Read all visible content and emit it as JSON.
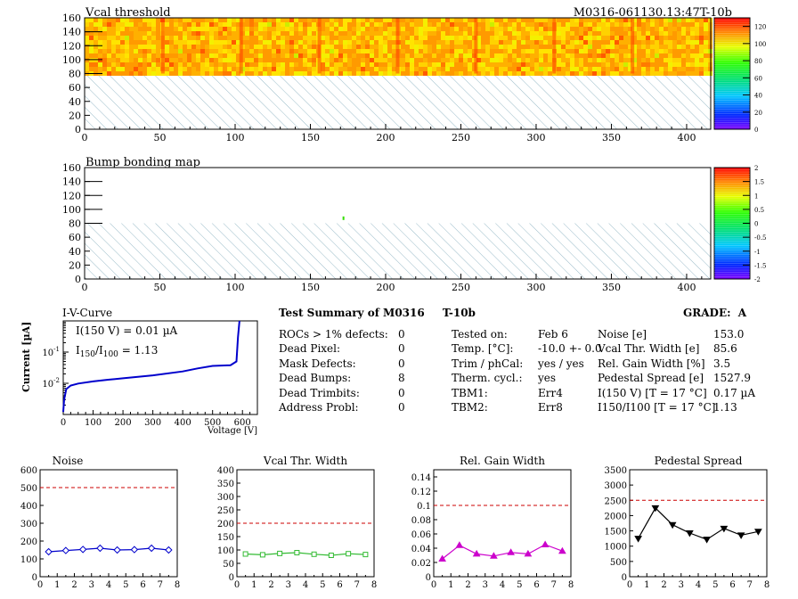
{
  "header": {
    "map1_title": "Vcal threshold",
    "module_id": "M0316-061130.13:47T-10b",
    "map2_title": "Bump bonding map"
  },
  "maps": {
    "x_ticks": [
      "0",
      "50",
      "100",
      "150",
      "200",
      "250",
      "300",
      "350",
      "400"
    ],
    "y_ticks": [
      "0",
      "20",
      "40",
      "60",
      "80",
      "100",
      "120",
      "140",
      "160"
    ],
    "x_range": [
      0,
      416
    ],
    "y_range": [
      0,
      160
    ],
    "vcal_palette_ticks": [
      "0",
      "20",
      "40",
      "60",
      "80",
      "100",
      "120"
    ],
    "bump_palette_ticks": [
      "-2",
      "-1.5",
      "-1",
      "-0.5",
      "0",
      "0.5",
      "1",
      "1.5",
      "2"
    ]
  },
  "iv": {
    "title": "I-V-Curve",
    "ylabel": "Current [µA]",
    "xlabel": "Voltage [V]",
    "x_ticks": [
      "0",
      "100",
      "200",
      "300",
      "400",
      "500",
      "600"
    ],
    "y_ticks_base": [
      "10",
      "10"
    ],
    "y_ticks_exp": [
      "-2",
      "-1"
    ],
    "note1": "I(150 V) = 0.01 µA",
    "note2_a": "I",
    "note2_sub1": "150",
    "note2_b": "/I",
    "note2_sub2": "100",
    "note2_c": " =  1.13"
  },
  "summary": {
    "title": "Test Summary of M0316",
    "title_suffix": "T-10b",
    "grade_label": "GRADE:",
    "grade": "A",
    "defects": [
      {
        "label": "ROCs > 1% defects:",
        "value": "0"
      },
      {
        "label": "Dead Pixel:",
        "value": "0"
      },
      {
        "label": "Mask Defects:",
        "value": "0"
      },
      {
        "label": "Dead Bumps:",
        "value": "8"
      },
      {
        "label": "Dead Trimbits:",
        "value": "0"
      },
      {
        "label": "Address Probl:",
        "value": "0"
      }
    ],
    "conditions": [
      {
        "label": "Tested on:",
        "value": "Feb 6"
      },
      {
        "label": "Temp. [°C]:",
        "value": "-10.0 +- 0.0"
      },
      {
        "label": "Trim / phCal:",
        "value": "yes / yes"
      },
      {
        "label": "Therm. cycl.:",
        "value": "yes"
      },
      {
        "label": "TBM1:",
        "value": "Err4"
      },
      {
        "label": "TBM2:",
        "value": "Err8"
      }
    ],
    "results": [
      {
        "label": "Noise [e]",
        "value": "153.0"
      },
      {
        "label": "Vcal Thr. Width [e]",
        "value": "85.6"
      },
      {
        "label": "Rel. Gain Width [%]",
        "value": "3.5"
      },
      {
        "label": "Pedestal Spread [e]",
        "value": "1527.9"
      },
      {
        "label": "I(150 V) [T = 17 °C]",
        "value": "0.17 µA"
      },
      {
        "label": "I150/I100  [T = 17 °C]",
        "value": "1.13"
      }
    ]
  },
  "chart_data": [
    {
      "type": "heatmap",
      "title": "Vcal threshold",
      "x_range": [
        0,
        416
      ],
      "y_range": [
        0,
        160
      ],
      "filled_y_range": [
        80,
        160
      ],
      "z_range": [
        0,
        130
      ],
      "typical_value": 110
    },
    {
      "type": "heatmap",
      "title": "Bump bonding map",
      "x_range": [
        0,
        416
      ],
      "y_range": [
        0,
        160
      ],
      "filled_y_range": [
        80,
        160
      ],
      "z_range": [
        -2,
        2
      ],
      "points": [
        {
          "x": 172,
          "y": 86,
          "z": 0.5
        }
      ]
    },
    {
      "type": "line",
      "title": "I-V-Curve",
      "xlabel": "Voltage [V]",
      "ylabel": "Current [µA]",
      "xlim": [
        0,
        650
      ],
      "ylim": [
        0.001,
        1
      ],
      "yscale": "log",
      "color": "#0000cc",
      "x": [
        0,
        3,
        10,
        25,
        50,
        100,
        150,
        200,
        300,
        400,
        450,
        500,
        560,
        580,
        585,
        590
      ],
      "y": [
        0.0012,
        0.003,
        0.0065,
        0.0085,
        0.0098,
        0.0115,
        0.013,
        0.0145,
        0.018,
        0.024,
        0.03,
        0.036,
        0.038,
        0.05,
        0.3,
        1.0
      ]
    },
    {
      "type": "line",
      "title": "Noise",
      "xlim": [
        0,
        8
      ],
      "ylim": [
        0,
        600
      ],
      "x_ticks": [
        "0",
        "1",
        "2",
        "3",
        "4",
        "5",
        "6",
        "7",
        "8"
      ],
      "y_ticks": [
        "0",
        "100",
        "200",
        "300",
        "400",
        "500",
        "600"
      ],
      "threshold": 500,
      "color": "#0000cc",
      "marker": "diamond",
      "x": [
        0.5,
        1.5,
        2.5,
        3.5,
        4.5,
        5.5,
        6.5,
        7.5
      ],
      "y": [
        140,
        147,
        153,
        160,
        150,
        152,
        160,
        150
      ]
    },
    {
      "type": "line",
      "title": "Vcal Thr. Width",
      "xlim": [
        0,
        8
      ],
      "ylim": [
        0,
        400
      ],
      "x_ticks": [
        "0",
        "1",
        "2",
        "3",
        "4",
        "5",
        "6",
        "7",
        "8"
      ],
      "y_ticks": [
        "0",
        "50",
        "100",
        "150",
        "200",
        "250",
        "300",
        "350",
        "400"
      ],
      "threshold": 200,
      "color": "#33bb33",
      "marker": "square",
      "x": [
        0.5,
        1.5,
        2.5,
        3.5,
        4.5,
        5.5,
        6.5,
        7.5
      ],
      "y": [
        85,
        82,
        87,
        90,
        84,
        80,
        86,
        83
      ]
    },
    {
      "type": "line",
      "title": "Rel. Gain Width",
      "xlim": [
        0,
        8
      ],
      "ylim": [
        0,
        0.15
      ],
      "x_ticks": [
        "0",
        "1",
        "2",
        "3",
        "4",
        "5",
        "6",
        "7",
        "8"
      ],
      "y_ticks": [
        "0",
        "0.02",
        "0.04",
        "0.06",
        "0.08",
        "0.1",
        "0.12",
        "0.14"
      ],
      "threshold": 0.1,
      "color": "#cc00cc",
      "marker": "triangle",
      "x": [
        0.5,
        1.5,
        2.5,
        3.5,
        4.5,
        5.5,
        6.5,
        7.5
      ],
      "y": [
        0.025,
        0.044,
        0.032,
        0.029,
        0.034,
        0.032,
        0.045,
        0.036
      ]
    },
    {
      "type": "line",
      "title": "Pedestal Spread",
      "xlim": [
        0,
        8
      ],
      "ylim": [
        0,
        3500
      ],
      "x_ticks": [
        "0",
        "1",
        "2",
        "3",
        "4",
        "5",
        "6",
        "7",
        "8"
      ],
      "y_ticks": [
        "0",
        "500",
        "1000",
        "1500",
        "2000",
        "2500",
        "3000",
        "3500"
      ],
      "threshold": 2500,
      "color": "#000000",
      "marker": "triangle-down",
      "x": [
        0.5,
        1.5,
        2.5,
        3.5,
        4.5,
        5.5,
        6.5,
        7.5
      ],
      "y": [
        1250,
        2250,
        1700,
        1430,
        1220,
        1580,
        1360,
        1480
      ]
    }
  ]
}
